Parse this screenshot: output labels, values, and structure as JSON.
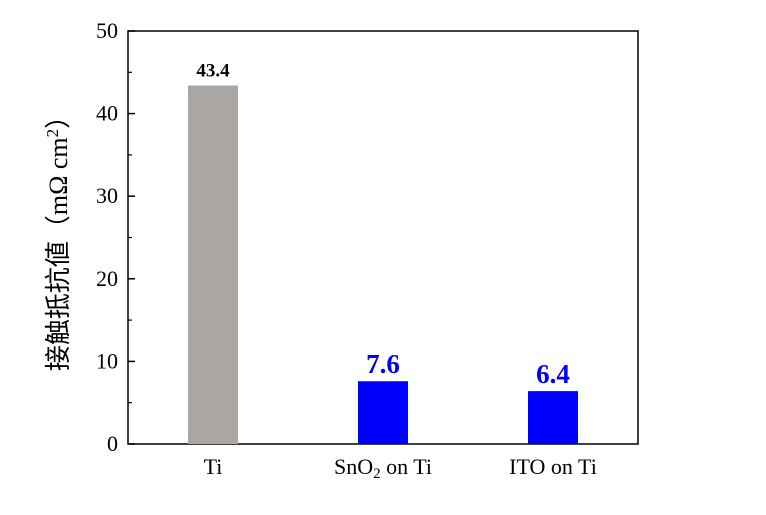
{
  "chart_data": {
    "type": "bar",
    "categories": [
      "Ti",
      "SnO2 on Ti",
      "ITO on Ti"
    ],
    "category_labels": [
      {
        "main": "Ti",
        "sub": "",
        "rest": ""
      },
      {
        "main": "SnO",
        "sub": "2",
        "rest": " on Ti"
      },
      {
        "main": "ITO on Ti",
        "sub": "",
        "rest": ""
      }
    ],
    "values": [
      43.4,
      7.6,
      6.4
    ],
    "data_labels": [
      "43.4",
      "7.6",
      "6.4"
    ],
    "bar_colors": [
      "#aaa6a3",
      "#0000ff",
      "#0000ff"
    ],
    "data_label_colors": [
      "#000000",
      "#0000ff",
      "#0000ff"
    ],
    "ylabel": "接触抵抗値",
    "ylabel_unit": "（mΩ cm",
    "ylabel_unit_sup": "2",
    "ylabel_unit_close": "）",
    "ylim": [
      0,
      50
    ],
    "yticks": [
      0,
      10,
      20,
      30,
      40,
      50
    ],
    "grid": false
  }
}
